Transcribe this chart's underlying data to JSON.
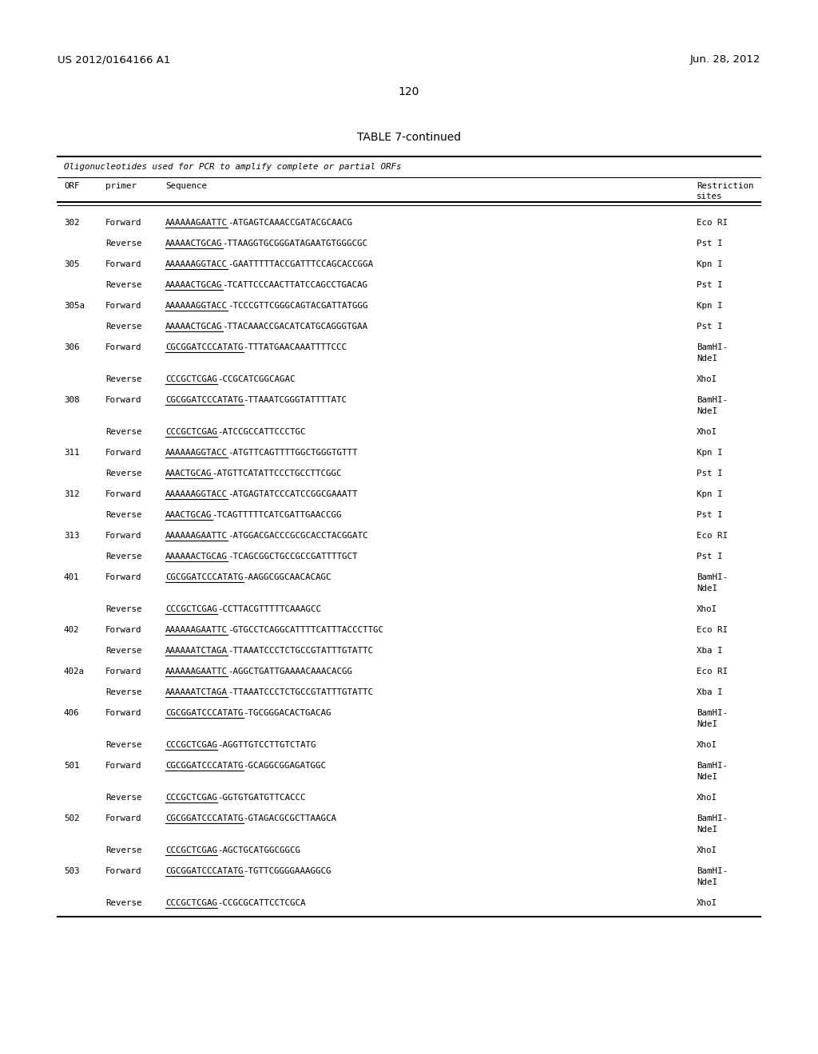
{
  "header_left": "US 2012/0164166 A1",
  "header_right": "Jun. 28, 2012",
  "page_number": "120",
  "table_title": "TABLE 7-continued",
  "table_subtitle": "Oligonucleotides used for PCR to amplify complete or partial ORFs",
  "col_headers": [
    "ORF",
    "primer",
    "Sequence",
    "Restriction\nsites"
  ],
  "rows": [
    [
      "302",
      "Forward",
      "AAAAAAGAATTC",
      "-ATGAGTCAAACCGATACGCAACG",
      "Eco RI",
      false
    ],
    [
      "",
      "Reverse",
      "AAAAACTGCAG",
      "-TTAAGGTGCGGGATAGAATGTGGGCGC",
      "Pst I",
      false
    ],
    [
      "305",
      "Forward",
      "AAAAAAGGTACC",
      "-GAATTTTTACCGATTTCCAGCACCGGA",
      "Kpn I",
      false
    ],
    [
      "",
      "Reverse",
      "AAAAACTGCAG",
      "-TCATTCCCAACTTATCCAGCCTGACAG",
      "Pst I",
      false
    ],
    [
      "305a",
      "Forward",
      "AAAAAAGGTACC",
      "-TCCCGTTCGGGCAGTACGATTATGGG",
      "Kpn I",
      false
    ],
    [
      "",
      "Reverse",
      "AAAAACTGCAG",
      "-TTACAAACCGACATCATGCAGGGTGAA",
      "Pst I",
      false
    ],
    [
      "306",
      "Forward",
      "CGCGGATCCCATATG",
      "-TTTATGAACAAATTTTCCC",
      "BamHI-\nNdeI",
      false
    ],
    [
      "",
      "Reverse",
      "CCCGCTCGAG",
      "-CCGCATCGGCAGAC",
      "XhoI",
      false
    ],
    [
      "308",
      "Forward",
      "CGCGGATCCCATATG",
      "-TTAAATCGGGTATTTTATC",
      "BamHI-\nNdeI",
      false
    ],
    [
      "",
      "Reverse",
      "CCCGCTCGAG",
      "-ATCCGCCATTCCCTGC",
      "XhoI",
      false
    ],
    [
      "311",
      "Forward",
      "AAAAAAGGTACC",
      "-ATGTTCAGTTTTGGCTGGGTGTTT",
      "Kpn I",
      false
    ],
    [
      "",
      "Reverse",
      "AAACTGCAG",
      "-ATGTTCATATTCCCTGCCTTCGGC",
      "Pst I",
      false
    ],
    [
      "312",
      "Forward",
      "AAAAAAGGTACC",
      "-ATGAGTATCCCATCCGGCGAAATT",
      "Kpn I",
      false
    ],
    [
      "",
      "Reverse",
      "AAACTGCAG",
      "-TCAGTTTTTCATCGATTGAACCGG",
      "Pst I",
      false
    ],
    [
      "313",
      "Forward",
      "AAAAAAGAATTC",
      "-ATGGACGACCCGCGCACCTACGGATC",
      "Eco RI",
      false
    ],
    [
      "",
      "Reverse",
      "AAAAAACTGCAG",
      "-TCAGCGGCTGCCGCCGATTTTGCT",
      "Pst I",
      false
    ],
    [
      "401",
      "Forward",
      "CGCGGATCCCATATG",
      "-AAGGCGGCAACACAGC",
      "BamHI-\nNdeI",
      false
    ],
    [
      "",
      "Reverse",
      "CCCGCTCGAG",
      "-CCTTACGTTTTTCAAAGCC",
      "XhoI",
      false
    ],
    [
      "402",
      "Forward",
      "AAAAAAGAATTC",
      "-GTGCCTCAGGCATTTTCATTTACCCTTGC",
      "Eco RI",
      false
    ],
    [
      "",
      "Reverse",
      "AAAAAATCTAGA",
      "-TTAAATCCCTCTGCCGTATTTGTATTC",
      "Xba I",
      false
    ],
    [
      "402a",
      "Forward",
      "AAAAAAGAATTC",
      "-AGGCTGATTGAAAACAAACACGG",
      "Eco RI",
      false
    ],
    [
      "",
      "Reverse",
      "AAAAAATCTAGA",
      "-TTAAATCCCTCTGCCGTATTTGTATTC",
      "Xba I",
      false
    ],
    [
      "406",
      "Forward",
      "CGCGGATCCCATATG",
      "-TGCGGGACACTGACAG",
      "BamHI-\nNdeI",
      false
    ],
    [
      "",
      "Reverse",
      "CCCGCTCGAG",
      "-AGGTTGTCCTTGTCTATG",
      "XhoI",
      false
    ],
    [
      "501",
      "Forward",
      "CGCGGATCCCATATG",
      "-GCAGGCGGAGATGGC",
      "BamHI-\nNdeI",
      false
    ],
    [
      "",
      "Reverse",
      "CCCGCTCGAG",
      "-GGTGTGATGTTCACCC",
      "XhoI",
      false
    ],
    [
      "502",
      "Forward",
      "CGCGGATCCCATATG",
      "-GTAGACGCGCTTAAGCA",
      "BamHI-\nNdeI",
      false
    ],
    [
      "",
      "Reverse",
      "CCCGCTCGAG",
      "-AGCTGCATGGCGGCG",
      "XhoI",
      false
    ],
    [
      "503",
      "Forward",
      "CGCGGATCCCATATG",
      "-TGTTCGGGGAAAGGCG",
      "BamHI-\nNdeI",
      false
    ],
    [
      "",
      "Reverse",
      "CCCGCTCGAG",
      "-CCGCGCATTCCTCGCA",
      "XhoI",
      false
    ]
  ],
  "bg_color": "#ffffff",
  "text_color": "#000000",
  "font_size_header": 9.5,
  "font_size_body": 7.8,
  "font_size_page": 10,
  "font_size_title": 10
}
